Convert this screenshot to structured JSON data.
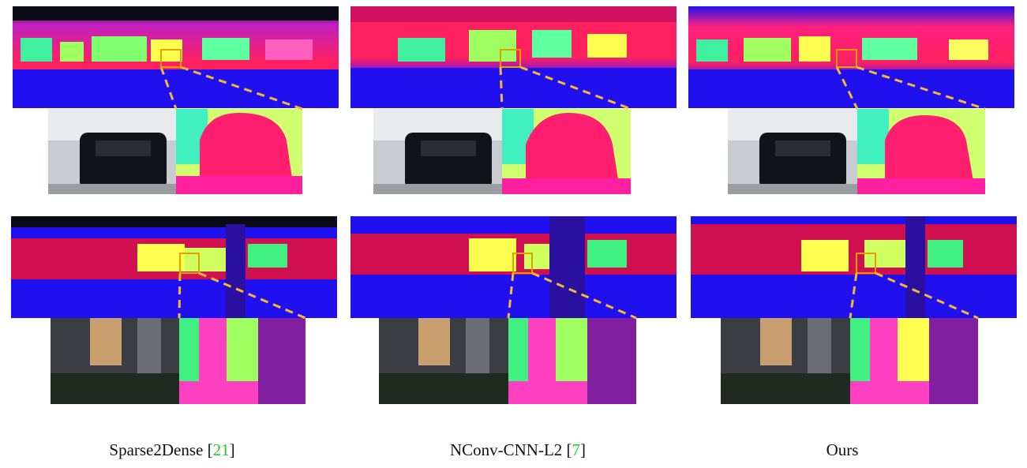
{
  "figure": {
    "columns": [
      {
        "label": "Sparse2Dense",
        "cite_open": "[",
        "cite_ref": "21",
        "cite_close": "]"
      },
      {
        "label": "NConv-CNN-L2",
        "cite_open": "[",
        "cite_ref": "7",
        "cite_close": "]"
      },
      {
        "label": "Ours",
        "cite_open": "",
        "cite_ref": "",
        "cite_close": ""
      }
    ],
    "colors": {
      "far": "#2a10f0",
      "mid": "#ff1f6e",
      "near": "#3af0b0",
      "bright": "#ffff40",
      "sky": "#0a0a14",
      "highlight_box": "#e3a000",
      "dash": "#f5b830"
    }
  }
}
